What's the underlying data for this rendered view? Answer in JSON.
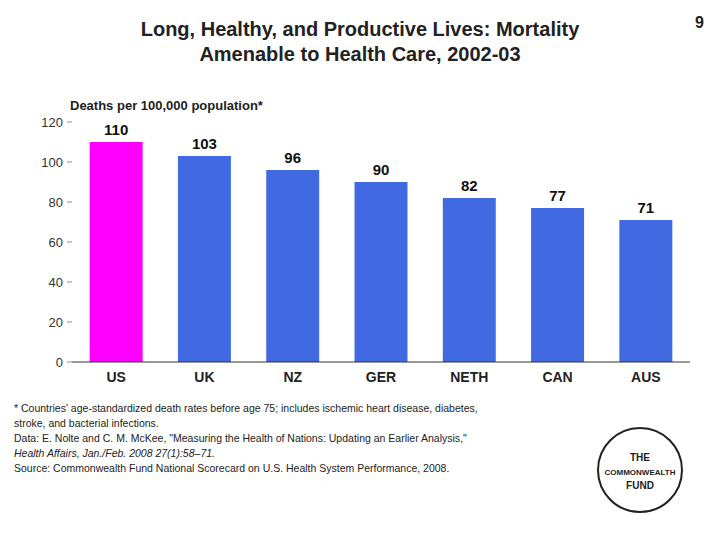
{
  "chart_data": {
    "type": "bar",
    "title": "Long, Healthy, and Productive Lives: Mortality\nAmenable to Health Care, 2002-03",
    "ylabel": "Deaths per 100,000 population*",
    "categories": [
      "US",
      "UK",
      "NZ",
      "GER",
      "NETH",
      "CAN",
      "AUS"
    ],
    "values": [
      110,
      103,
      96,
      90,
      82,
      77,
      71
    ],
    "colors": [
      "#FF00FF",
      "#4169E1",
      "#4169E1",
      "#4169E1",
      "#4169E1",
      "#4169E1",
      "#4169E1"
    ],
    "ylim": [
      0,
      120
    ],
    "yticks": [
      0,
      20,
      40,
      60,
      80,
      100,
      120
    ],
    "grid": false,
    "data_labels": true,
    "slide_number": "9",
    "footnotes": [
      "* Countries' age-standardized death rates before age 75; includes ischemic heart disease, diabetes,",
      "stroke, and bacterial infections.",
      "Data: E. Nolte and C. M. McKee, \"Measuring the Health of Nations: Updating an Earlier Analysis,\"",
      "Health Affairs, Jan./Feb. 2008 27(1):58–71.",
      "Source: Commonwealth Fund National Scorecard on U.S. Health System Performance, 2008."
    ],
    "logo_text": [
      "THE",
      "COMMONWEALTH",
      "FUND"
    ]
  }
}
